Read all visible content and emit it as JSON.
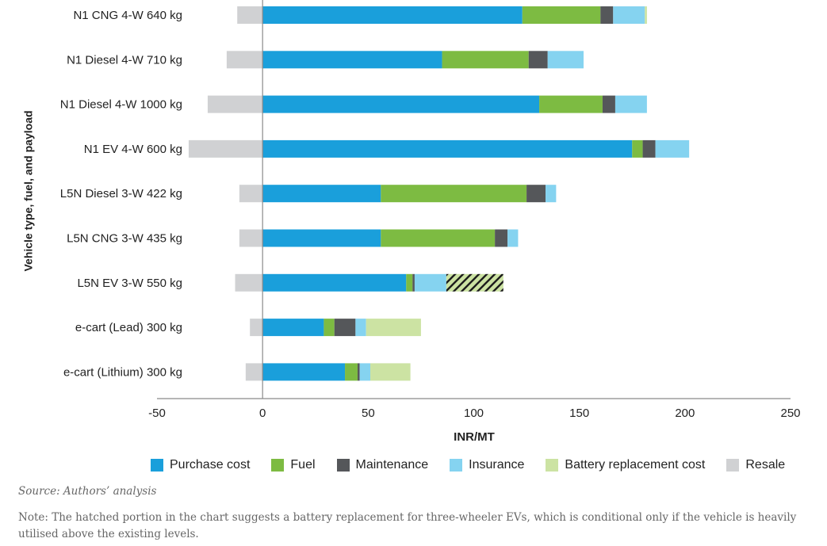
{
  "chart_data": {
    "type": "bar",
    "orientation": "horizontal",
    "stacked": true,
    "xlabel": "INR/MT",
    "ylabel": "Vehicle type, fuel, and payload",
    "xlim": [
      -50,
      250
    ],
    "xticks": [
      "-50",
      "0",
      "50",
      "100",
      "150",
      "200",
      "250"
    ],
    "categories": [
      "N1 CNG 4-W 640 kg",
      "N1 Diesel 4-W 710 kg",
      "N1 Diesel 4-W 1000 kg",
      "N1 EV 4-W 600 kg",
      "L5N Diesel 3-W 422 kg",
      "L5N CNG 3-W 435 kg",
      "L5N EV 3-W 550 kg",
      "e-cart (Lead) 300 kg",
      "e-cart (Lithium) 300 kg"
    ],
    "series": [
      {
        "name": "Purchase cost",
        "color": "#1a9fdb",
        "values": [
          123,
          85,
          131,
          175,
          56,
          56,
          68,
          29,
          39
        ]
      },
      {
        "name": "Fuel",
        "color": "#7dbb42",
        "values": [
          37,
          41,
          30,
          5,
          69,
          54,
          3,
          5,
          6
        ]
      },
      {
        "name": "Maintenance",
        "color": "#55575a",
        "values": [
          6,
          9,
          6,
          6,
          9,
          6,
          1,
          10,
          1
        ]
      },
      {
        "name": "Insurance",
        "color": "#85d3f0",
        "values": [
          15,
          17,
          15,
          16,
          5,
          5,
          15,
          5,
          5
        ]
      },
      {
        "name": "Battery replacement cost",
        "color": "#cce3a3",
        "values": [
          1,
          0,
          0,
          0,
          0,
          0,
          27,
          26,
          19
        ],
        "hatched_categories": [
          "L5N EV 3-W 550 kg"
        ]
      },
      {
        "name": "Resale",
        "color": "#d0d1d3",
        "values": [
          -12,
          -17,
          -26,
          -35,
          -11,
          -11,
          -13,
          -6,
          -8
        ]
      }
    ]
  },
  "source": "Source: Authors’ analysis",
  "note": "Note: The hatched portion in the chart suggests a battery replacement for three-wheeler EVs, which is conditional only if the vehicle is heavily utilised above the existing levels."
}
